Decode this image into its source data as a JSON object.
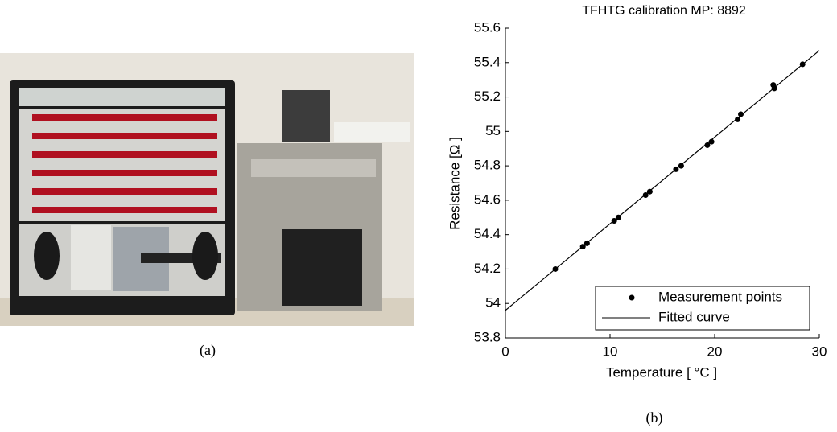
{
  "captions": [
    "(a)",
    "(b)"
  ],
  "chart_data": {
    "type": "scatter",
    "title": "TFHTG calibration MP: 8892",
    "x_label": "Temperature [ °C ]",
    "y_label": "Resistance [Ω ]",
    "xlim": [
      0,
      30
    ],
    "ylim": [
      53.8,
      55.6
    ],
    "xticks": [
      0,
      10,
      20,
      30
    ],
    "yticks": [
      53.8,
      54,
      54.2,
      54.4,
      54.6,
      54.8,
      55,
      55.2,
      55.4,
      55.6
    ],
    "grid": false,
    "legend": "lower right",
    "series": [
      {
        "name": "Measurement points",
        "color": "#000000",
        "mode": "markers",
        "x": [
          4.77,
          7.4,
          7.8,
          10.4,
          10.8,
          13.4,
          13.8,
          16.3,
          16.8,
          19.3,
          19.7,
          22.2,
          22.5,
          25.6,
          25.7,
          28.4
        ],
        "values": [
          54.2,
          54.33,
          54.35,
          54.48,
          54.5,
          54.63,
          54.65,
          54.78,
          54.8,
          54.92,
          54.94,
          55.07,
          55.1,
          55.27,
          55.25,
          55.39
        ]
      },
      {
        "name": "Fitted curve",
        "color": "#000000",
        "mode": "line",
        "x": [
          0,
          30
        ],
        "values": [
          53.96,
          55.47
        ]
      }
    ]
  }
}
